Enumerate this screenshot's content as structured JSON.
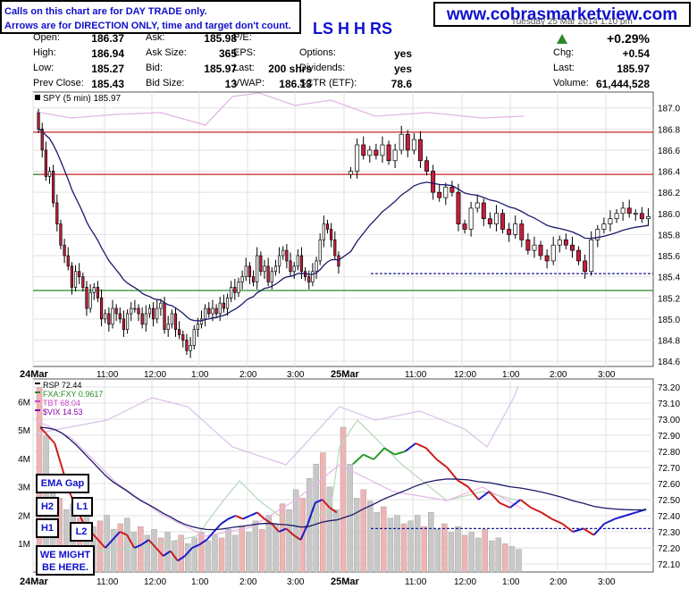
{
  "disclaimer": {
    "line1": "Calls on this chart are for DAY TRADE only.",
    "line2": "Arrows are for DIRECTION ONLY, time and target don't count."
  },
  "site": "www.cobrasmarketview.com",
  "ticker_fragment": "LS H H RS",
  "date_fragment": "Tuesday 25 Mar 2014 1:10 pm",
  "quote": {
    "col1": [
      [
        "Open:",
        "186.37"
      ],
      [
        "High:",
        "186.94"
      ],
      [
        "Low:",
        "185.27"
      ],
      [
        "Prev Close:",
        "185.43"
      ]
    ],
    "col2": [
      [
        "Ask:",
        "185.98"
      ],
      [
        "Ask Size:",
        "365"
      ],
      [
        "Bid:",
        "185.97"
      ],
      [
        "Bid Size:",
        "13"
      ]
    ],
    "col3": [
      [
        "P/E:",
        ""
      ],
      [
        "EPS:",
        ""
      ],
      [
        "Last:",
        "200 shrs"
      ],
      [
        "VWAP:",
        "186.13"
      ]
    ],
    "col4": [
      [
        "Options:",
        "yes"
      ],
      [
        "Dividends:",
        "yes"
      ],
      [
        "SCTR (ETF):",
        "78.6"
      ]
    ],
    "change_pct": "+0.29%",
    "col5": [
      [
        "Chg:",
        "+0.54"
      ],
      [
        "Last:",
        "185.97"
      ],
      [
        "Volume:",
        "61,444,528"
      ]
    ],
    "arrow_color": "#2a8a2a"
  },
  "annotations": {
    "ema_gap": "EMA Gap",
    "h2": "H2",
    "h1": "H1",
    "l1": "L1",
    "l2": "L2",
    "note_line1": "WE MIGHT",
    "note_line2": "BE HERE."
  },
  "chart_data": [
    {
      "type": "candlestick",
      "legend": "SPY (5 min) 185.97",
      "ylim": [
        184.55,
        187.15
      ],
      "yticks": [
        "187.0",
        "186.8",
        "186.6",
        "186.4",
        "186.2",
        "186.0",
        "185.8",
        "185.6",
        "185.4",
        "185.2",
        "185.0",
        "184.8",
        "184.6"
      ],
      "xticks": [
        "24Mar",
        "11:00",
        "12:00",
        "1:00",
        "2:00",
        "3:00",
        "25Mar",
        "11:00",
        "12:00",
        "1:00",
        "2:00",
        "3:00"
      ],
      "hlines": [
        {
          "y": 186.77,
          "color": "#cc2222"
        },
        {
          "y": 186.37,
          "color": "#cc2222"
        },
        {
          "y": 186.37,
          "color": "#2a8a2a",
          "extent": "left"
        },
        {
          "y": 185.27,
          "color": "#2a8a2a"
        },
        {
          "y": 185.43,
          "color": "#1a1a9a",
          "style": "dashed",
          "extent": "right"
        }
      ],
      "day1_close": [
        186.8,
        186.6,
        186.35,
        186.4,
        186.1,
        185.9,
        185.7,
        185.6,
        185.5,
        185.3,
        185.45,
        185.4,
        185.3,
        185.1,
        185.25,
        185.3,
        185.2,
        185.0,
        185.05,
        184.95,
        185.1,
        185.05,
        185.0,
        184.9,
        185.05,
        185.1,
        185.1,
        185.05,
        184.95,
        185.05,
        185.1,
        185.0,
        185.1,
        185.15,
        184.9,
        184.95,
        185.05,
        184.9,
        184.85,
        184.8,
        184.7,
        184.75,
        184.9,
        184.95,
        185.0,
        185.1,
        185.05,
        185.1,
        185.05,
        185.15,
        185.1,
        185.2,
        185.3,
        185.25,
        185.35,
        185.4,
        185.5,
        185.4,
        185.35,
        185.6,
        185.45,
        185.5,
        185.35,
        185.45,
        185.5,
        185.6,
        185.65,
        185.55,
        185.45,
        185.5,
        185.6,
        185.45,
        185.4,
        185.35,
        185.45,
        185.55,
        185.75,
        185.9,
        185.85,
        185.75,
        185.6,
        185.5
      ],
      "day2_close": [
        186.4,
        186.65,
        186.55,
        186.6,
        186.55,
        186.65,
        186.5,
        186.6,
        186.75,
        186.6,
        186.7,
        186.5,
        186.4,
        186.2,
        186.15,
        186.25,
        186.2,
        185.9,
        185.85,
        186.05,
        186.1,
        185.95,
        185.9,
        186.0,
        185.85,
        185.8,
        185.9,
        185.75,
        185.65,
        185.7,
        185.6,
        185.55,
        185.7,
        185.75,
        185.7,
        185.65,
        185.55,
        185.45,
        185.75,
        185.85,
        185.9,
        185.95,
        186.0,
        186.05,
        186.0,
        186.0,
        185.95,
        185.97
      ],
      "ema_color": "#1a1a6a"
    },
    {
      "type": "line",
      "legend": [
        "RSP 72.44",
        "FXA:FXY 0.9617",
        "TBT 68.04",
        "$VIX 14.53"
      ],
      "legend_colors": [
        "#000000",
        "#2a8a2a",
        "#cc44cc",
        "#8800aa"
      ],
      "ylim": [
        72.05,
        73.25
      ],
      "yticks": [
        "73.20",
        "73.10",
        "73.00",
        "72.90",
        "72.80",
        "72.70",
        "72.60",
        "72.50",
        "72.40",
        "72.30",
        "72.20",
        "72.10"
      ],
      "volume_ticks": [
        "6M",
        "5M",
        "4M",
        "3M",
        "2M",
        "1M"
      ],
      "volume_max_m": 6.8,
      "xticks": [
        "24Mar",
        "11:00",
        "12:00",
        "1:00",
        "2:00",
        "3:00",
        "25Mar",
        "11:00",
        "12:00",
        "1:00",
        "2:00",
        "3:00"
      ],
      "hline": {
        "y": 72.32,
        "color": "#1a1a9a",
        "style": "dashed",
        "extent": "right"
      },
      "rsp_day1": [
        72.95,
        72.9,
        72.85,
        72.7,
        72.55,
        72.45,
        72.35,
        72.3,
        72.25,
        72.2,
        72.25,
        72.3,
        72.28,
        72.2,
        72.22,
        72.25,
        72.2,
        72.15,
        72.18,
        72.12,
        72.15,
        72.2,
        72.22,
        72.25,
        72.3,
        72.35,
        72.38,
        72.4,
        72.38,
        72.4,
        72.42,
        72.38,
        72.35,
        72.3,
        72.32,
        72.28,
        72.25,
        72.35,
        72.48,
        72.5,
        72.45,
        72.42
      ],
      "rsp_day2": [
        72.72,
        72.78,
        72.75,
        72.82,
        72.78,
        72.8,
        72.85,
        72.82,
        72.75,
        72.7,
        72.62,
        72.58,
        72.5,
        72.55,
        72.48,
        72.45,
        72.5,
        72.45,
        72.42,
        72.38,
        72.35,
        72.3,
        72.32,
        72.28,
        72.35,
        72.38,
        72.4,
        72.42,
        72.44
      ],
      "volume_m": [
        6.5,
        4.8,
        3.1,
        2.6,
        2.2,
        2.4,
        1.9,
        2.1,
        1.6,
        1.8,
        2.0,
        1.5,
        1.7,
        1.9,
        1.4,
        1.6,
        1.3,
        1.5,
        1.2,
        1.4,
        1.1,
        1.3,
        1.0,
        1.2,
        1.4,
        1.1,
        1.3,
        1.2,
        1.5,
        1.3,
        1.6,
        1.4,
        1.8,
        1.5,
        2.0,
        1.7,
        2.4,
        2.2,
        2.9,
        2.6,
        3.3,
        3.8,
        4.2,
        3.0,
        2.2,
        5.1,
        3.8,
        2.6,
        2.9,
        2.5,
        2.1,
        2.3,
        1.9,
        2.0,
        1.7,
        1.8,
        2.0,
        1.6,
        2.1,
        1.5,
        1.7,
        1.4,
        1.6,
        1.3,
        1.4,
        1.2,
        1.5,
        1.1,
        1.2,
        1.0,
        0.9,
        0.8
      ]
    }
  ]
}
